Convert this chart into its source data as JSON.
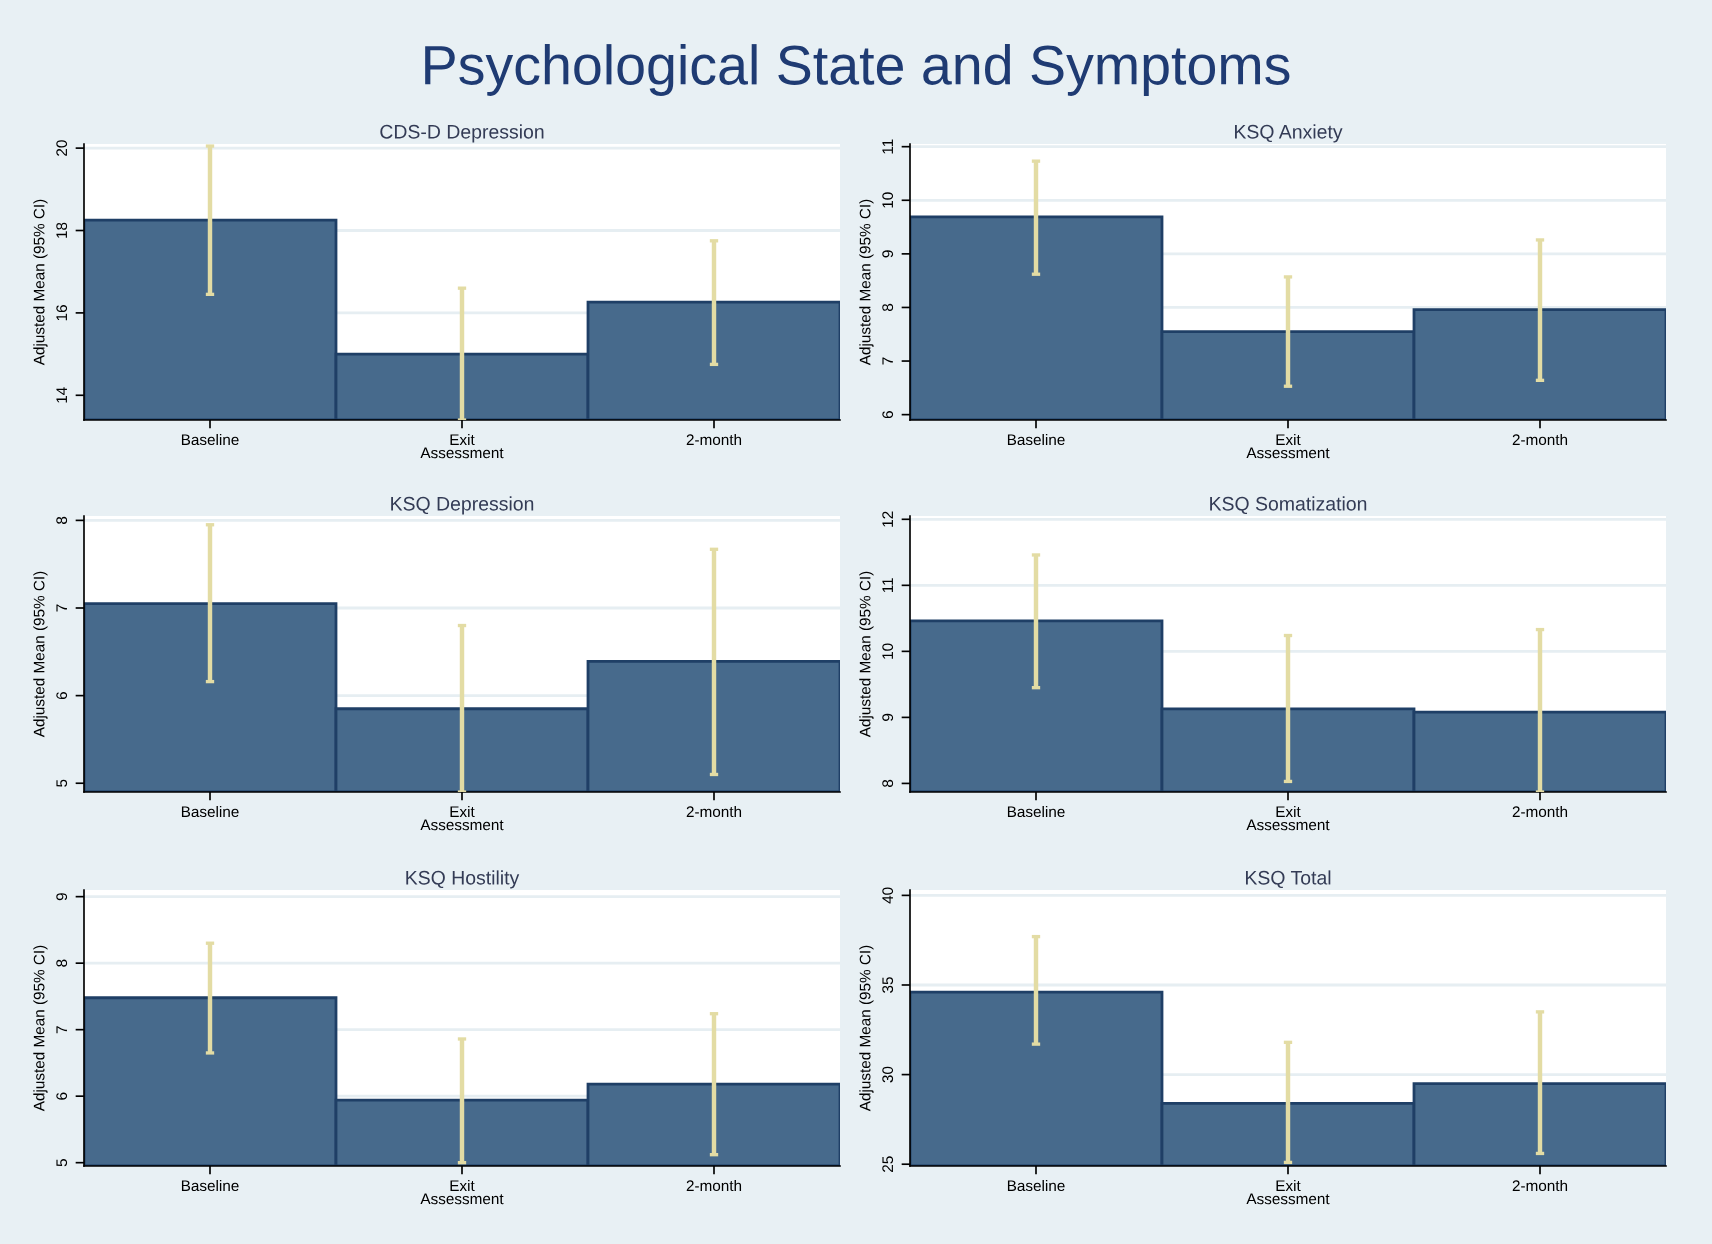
{
  "chart_data": [
    {
      "type": "bar",
      "title": "CDS-D Depression",
      "ylabel": "Adjusted Mean (95% CI)",
      "annotations": [
        "Psychological State and Symptoms"
      ],
      "categories": [
        "Baseline",
        "Exit\nAssessment",
        "2-month"
      ],
      "values": [
        18.25,
        15.0,
        16.26
      ],
      "errors": [
        [
          16.45,
          20.05
        ],
        [
          13.4,
          16.6
        ],
        [
          14.75,
          17.75
        ]
      ],
      "color": "#476a8c",
      "ylim": [
        13.4,
        20.1
      ],
      "yticks": [
        14,
        16,
        18,
        20
      ],
      "grid": "y"
    },
    {
      "type": "bar",
      "title": "KSQ Anxiety",
      "ylabel": "Adjusted Mean (95% CI)",
      "categories": [
        "Baseline",
        "Exit\nAssessment",
        "2-month"
      ],
      "values": [
        9.69,
        7.55,
        7.96
      ],
      "errors": [
        [
          8.62,
          10.73
        ],
        [
          6.53,
          8.57
        ],
        [
          6.64,
          9.26
        ]
      ],
      "color": "#476a8c",
      "ylim": [
        5.9,
        11.05
      ],
      "yticks": [
        6,
        7,
        8,
        9,
        10,
        11
      ],
      "grid": "y"
    },
    {
      "type": "bar",
      "title": "KSQ Depression",
      "ylabel": "Adjusted Mean (95% CI)",
      "categories": [
        "Baseline",
        "Exit\nAssessment",
        "2-month"
      ],
      "values": [
        7.05,
        5.85,
        6.39
      ],
      "errors": [
        [
          6.16,
          7.95
        ],
        [
          4.9,
          6.8
        ],
        [
          5.1,
          7.67
        ]
      ],
      "color": "#476a8c",
      "ylim": [
        4.9,
        8.05
      ],
      "yticks": [
        5,
        6,
        7,
        8
      ],
      "grid": "y"
    },
    {
      "type": "bar",
      "title": "KSQ Somatization",
      "ylabel": "Adjusted Mean (95% CI)",
      "categories": [
        "Baseline",
        "Exit\nAssessment",
        "2-month"
      ],
      "values": [
        10.46,
        9.13,
        9.08
      ],
      "errors": [
        [
          9.45,
          11.46
        ],
        [
          8.03,
          10.24
        ],
        [
          7.87,
          10.33
        ]
      ],
      "color": "#476a8c",
      "ylim": [
        7.87,
        12.05
      ],
      "yticks": [
        8,
        9,
        10,
        11,
        12
      ],
      "grid": "y"
    },
    {
      "type": "bar",
      "title": "KSQ Hostility",
      "ylabel": "Adjusted Mean (95% CI)",
      "categories": [
        "Baseline",
        "Exit\nAssessment",
        "2-month"
      ],
      "values": [
        7.48,
        5.94,
        6.18
      ],
      "errors": [
        [
          6.65,
          8.3
        ],
        [
          5.0,
          6.86
        ],
        [
          5.12,
          7.24
        ]
      ],
      "color": "#476a8c",
      "ylim": [
        4.95,
        9.1
      ],
      "yticks": [
        5,
        6,
        7,
        8,
        9
      ],
      "grid": "y"
    },
    {
      "type": "bar",
      "title": "KSQ Total",
      "ylabel": "Adjusted Mean (95% CI)",
      "categories": [
        "Baseline",
        "Exit\nAssessment",
        "2-month"
      ],
      "values": [
        34.6,
        28.4,
        29.5
      ],
      "errors": [
        [
          31.7,
          37.7
        ],
        [
          25.1,
          31.8
        ],
        [
          25.6,
          33.5
        ]
      ],
      "color": "#476a8c",
      "ylim": [
        24.9,
        40.3
      ],
      "yticks": [
        25,
        30,
        35,
        40
      ],
      "grid": "y"
    }
  ]
}
